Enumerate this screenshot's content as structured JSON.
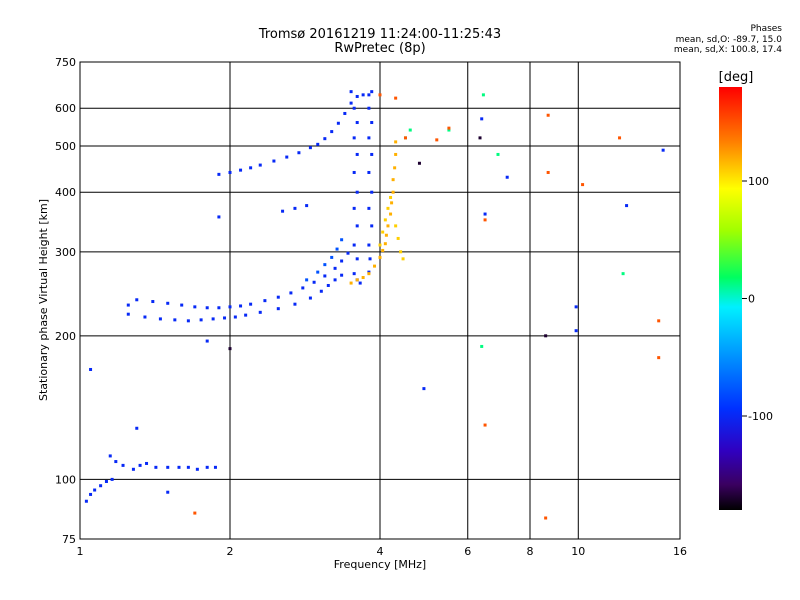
{
  "header": {
    "title_line1": "Tromsø 20161219 11:24:00-11:25:43",
    "title_line2": "RwPretec (8p)",
    "phases_title": "Phases",
    "phases_o": "mean, sd,O: -89.7, 15.0",
    "phases_x": "mean, sd,X: 100.8, 17.4"
  },
  "colorbar": {
    "label": "[deg]",
    "range": [
      -180,
      180
    ],
    "ticks": [
      100,
      0,
      -100
    ],
    "tick_labels": [
      "100",
      "0",
      "-100"
    ]
  },
  "chart_data": {
    "type": "scatter",
    "title": "Tromsø 20161219 11:24:00-11:25:43",
    "subtitle": "RwPretec (8p)",
    "xlabel": "Frequency [MHz]",
    "ylabel": "Stationary phase Virtual Height [km]",
    "xscale": "log",
    "yscale": "log",
    "xlim": [
      1,
      16
    ],
    "ylim": [
      75,
      750
    ],
    "xticks": [
      1,
      2,
      4,
      6,
      8,
      10,
      16
    ],
    "xtick_labels": [
      "1",
      "2",
      "4",
      "6",
      "8",
      "10",
      "16"
    ],
    "yticks": [
      75,
      100,
      200,
      300,
      400,
      500,
      600,
      750
    ],
    "ytick_labels": [
      "75",
      "100",
      "200",
      "300",
      "400",
      "500",
      "600",
      "750"
    ],
    "grid": true,
    "color_encoding": "phase [deg]",
    "series": [
      {
        "trace": "E-layer",
        "phase": -100,
        "points": [
          [
            1.03,
            90
          ],
          [
            1.05,
            93
          ],
          [
            1.07,
            95
          ],
          [
            1.1,
            97
          ],
          [
            1.13,
            99
          ],
          [
            1.16,
            100
          ],
          [
            1.15,
            112
          ],
          [
            1.18,
            109
          ],
          [
            1.22,
            107
          ],
          [
            1.28,
            105
          ],
          [
            1.32,
            107
          ],
          [
            1.36,
            108
          ],
          [
            1.42,
            106
          ],
          [
            1.5,
            106
          ],
          [
            1.58,
            106
          ],
          [
            1.65,
            106
          ],
          [
            1.72,
            105
          ],
          [
            1.8,
            106
          ],
          [
            1.87,
            106
          ]
        ]
      },
      {
        "trace": "F-low-lower",
        "phase": -100,
        "points": [
          [
            1.25,
            222
          ],
          [
            1.35,
            219
          ],
          [
            1.45,
            217
          ],
          [
            1.55,
            216
          ],
          [
            1.65,
            215
          ],
          [
            1.75,
            216
          ],
          [
            1.85,
            217
          ],
          [
            1.95,
            218
          ],
          [
            2.05,
            219
          ],
          [
            2.15,
            221
          ],
          [
            2.3,
            224
          ],
          [
            2.5,
            228
          ],
          [
            2.7,
            233
          ],
          [
            2.9,
            240
          ],
          [
            3.05,
            248
          ],
          [
            3.15,
            255
          ],
          [
            3.25,
            262
          ],
          [
            3.35,
            268
          ]
        ]
      },
      {
        "trace": "F-low-upper",
        "phase": -100,
        "points": [
          [
            1.25,
            232
          ],
          [
            1.3,
            238
          ],
          [
            1.4,
            236
          ],
          [
            1.5,
            234
          ],
          [
            1.6,
            232
          ],
          [
            1.7,
            230
          ],
          [
            1.8,
            229
          ],
          [
            1.9,
            229
          ],
          [
            2.0,
            230
          ],
          [
            2.1,
            231
          ],
          [
            2.2,
            233
          ],
          [
            2.35,
            237
          ],
          [
            2.5,
            241
          ],
          [
            2.65,
            246
          ],
          [
            2.8,
            252
          ],
          [
            2.95,
            259
          ],
          [
            3.1,
            267
          ],
          [
            3.25,
            277
          ],
          [
            3.35,
            287
          ],
          [
            3.45,
            298
          ]
        ]
      },
      {
        "trace": "F-rising",
        "phase": -80,
        "points": [
          [
            2.85,
            262
          ],
          [
            3.0,
            272
          ],
          [
            3.1,
            282
          ],
          [
            3.2,
            292
          ],
          [
            3.28,
            304
          ],
          [
            3.35,
            318
          ]
        ]
      },
      {
        "trace": "F-upper",
        "phase": -100,
        "points": [
          [
            1.9,
            436
          ],
          [
            2.0,
            440
          ],
          [
            2.1,
            445
          ],
          [
            2.2,
            450
          ],
          [
            2.3,
            456
          ],
          [
            2.45,
            465
          ],
          [
            2.6,
            474
          ],
          [
            2.75,
            484
          ],
          [
            2.9,
            496
          ],
          [
            3.0,
            504
          ],
          [
            3.1,
            518
          ],
          [
            3.2,
            536
          ],
          [
            3.3,
            558
          ],
          [
            3.4,
            585
          ],
          [
            3.5,
            615
          ],
          [
            3.6,
            635
          ],
          [
            3.7,
            640
          ],
          [
            3.8,
            640
          ]
        ]
      },
      {
        "trace": "F-vertical-1",
        "phase": -100,
        "points": [
          [
            3.5,
            650
          ],
          [
            3.55,
            600
          ],
          [
            3.6,
            560
          ],
          [
            3.55,
            520
          ],
          [
            3.6,
            480
          ],
          [
            3.55,
            440
          ],
          [
            3.6,
            400
          ],
          [
            3.55,
            370
          ],
          [
            3.6,
            340
          ],
          [
            3.55,
            310
          ],
          [
            3.6,
            290
          ],
          [
            3.55,
            270
          ],
          [
            3.6,
            262
          ],
          [
            3.65,
            258
          ]
        ]
      },
      {
        "trace": "F-vertical-2",
        "phase": -100,
        "points": [
          [
            3.85,
            650
          ],
          [
            3.8,
            600
          ],
          [
            3.85,
            560
          ],
          [
            3.8,
            520
          ],
          [
            3.85,
            480
          ],
          [
            3.8,
            440
          ],
          [
            3.85,
            400
          ],
          [
            3.8,
            370
          ],
          [
            3.85,
            340
          ],
          [
            3.8,
            310
          ],
          [
            3.82,
            290
          ],
          [
            3.8,
            272
          ]
        ]
      },
      {
        "trace": "X-main",
        "phase": 120,
        "points": [
          [
            3.5,
            258
          ],
          [
            3.6,
            262
          ],
          [
            3.7,
            265
          ],
          [
            3.8,
            270
          ],
          [
            3.9,
            280
          ],
          [
            4.0,
            292
          ],
          [
            4.05,
            302
          ],
          [
            4.1,
            312
          ],
          [
            4.12,
            325
          ],
          [
            4.15,
            340
          ],
          [
            4.2,
            360
          ],
          [
            4.22,
            380
          ],
          [
            4.25,
            400
          ],
          [
            4.25,
            425
          ],
          [
            4.28,
            450
          ],
          [
            4.3,
            480
          ],
          [
            4.3,
            510
          ]
        ]
      },
      {
        "trace": "X-branch",
        "phase": 110,
        "points": [
          [
            4.0,
            310
          ],
          [
            4.05,
            330
          ],
          [
            4.1,
            350
          ],
          [
            4.15,
            370
          ],
          [
            4.2,
            390
          ],
          [
            4.3,
            340
          ],
          [
            4.35,
            320
          ],
          [
            4.4,
            300
          ],
          [
            4.45,
            290
          ]
        ]
      },
      {
        "trace": "scatter-blue",
        "phase": -100,
        "points": [
          [
            1.05,
            170
          ],
          [
            1.3,
            128
          ],
          [
            1.5,
            94
          ],
          [
            1.8,
            195
          ],
          [
            1.9,
            355
          ],
          [
            2.55,
            365
          ],
          [
            2.7,
            370
          ],
          [
            2.85,
            375
          ],
          [
            4.9,
            155
          ],
          [
            6.4,
            570
          ],
          [
            7.2,
            430
          ],
          [
            9.9,
            230
          ],
          [
            9.9,
            205
          ],
          [
            12.5,
            375
          ],
          [
            14.8,
            490
          ],
          [
            6.5,
            360
          ]
        ]
      },
      {
        "trace": "scatter-cyan",
        "phase": 10,
        "points": [
          [
            4.5,
            520
          ],
          [
            4.6,
            540
          ],
          [
            5.5,
            540
          ],
          [
            6.45,
            640
          ],
          [
            6.4,
            190
          ],
          [
            6.9,
            480
          ],
          [
            12.3,
            270
          ]
        ]
      },
      {
        "trace": "scatter-orange",
        "phase": 150,
        "points": [
          [
            4.0,
            640
          ],
          [
            4.3,
            630
          ],
          [
            4.5,
            520
          ],
          [
            5.2,
            515
          ],
          [
            5.5,
            545
          ],
          [
            6.5,
            350
          ],
          [
            6.5,
            130
          ],
          [
            8.7,
            580
          ],
          [
            8.7,
            440
          ],
          [
            10.2,
            415
          ],
          [
            12.1,
            520
          ],
          [
            14.5,
            215
          ],
          [
            14.5,
            180
          ],
          [
            1.7,
            85
          ],
          [
            8.6,
            83
          ]
        ]
      },
      {
        "trace": "scatter-red",
        "phase": -170,
        "points": [
          [
            2.0,
            188
          ],
          [
            4.8,
            460
          ],
          [
            8.6,
            200
          ],
          [
            6.35,
            520
          ]
        ]
      }
    ]
  }
}
